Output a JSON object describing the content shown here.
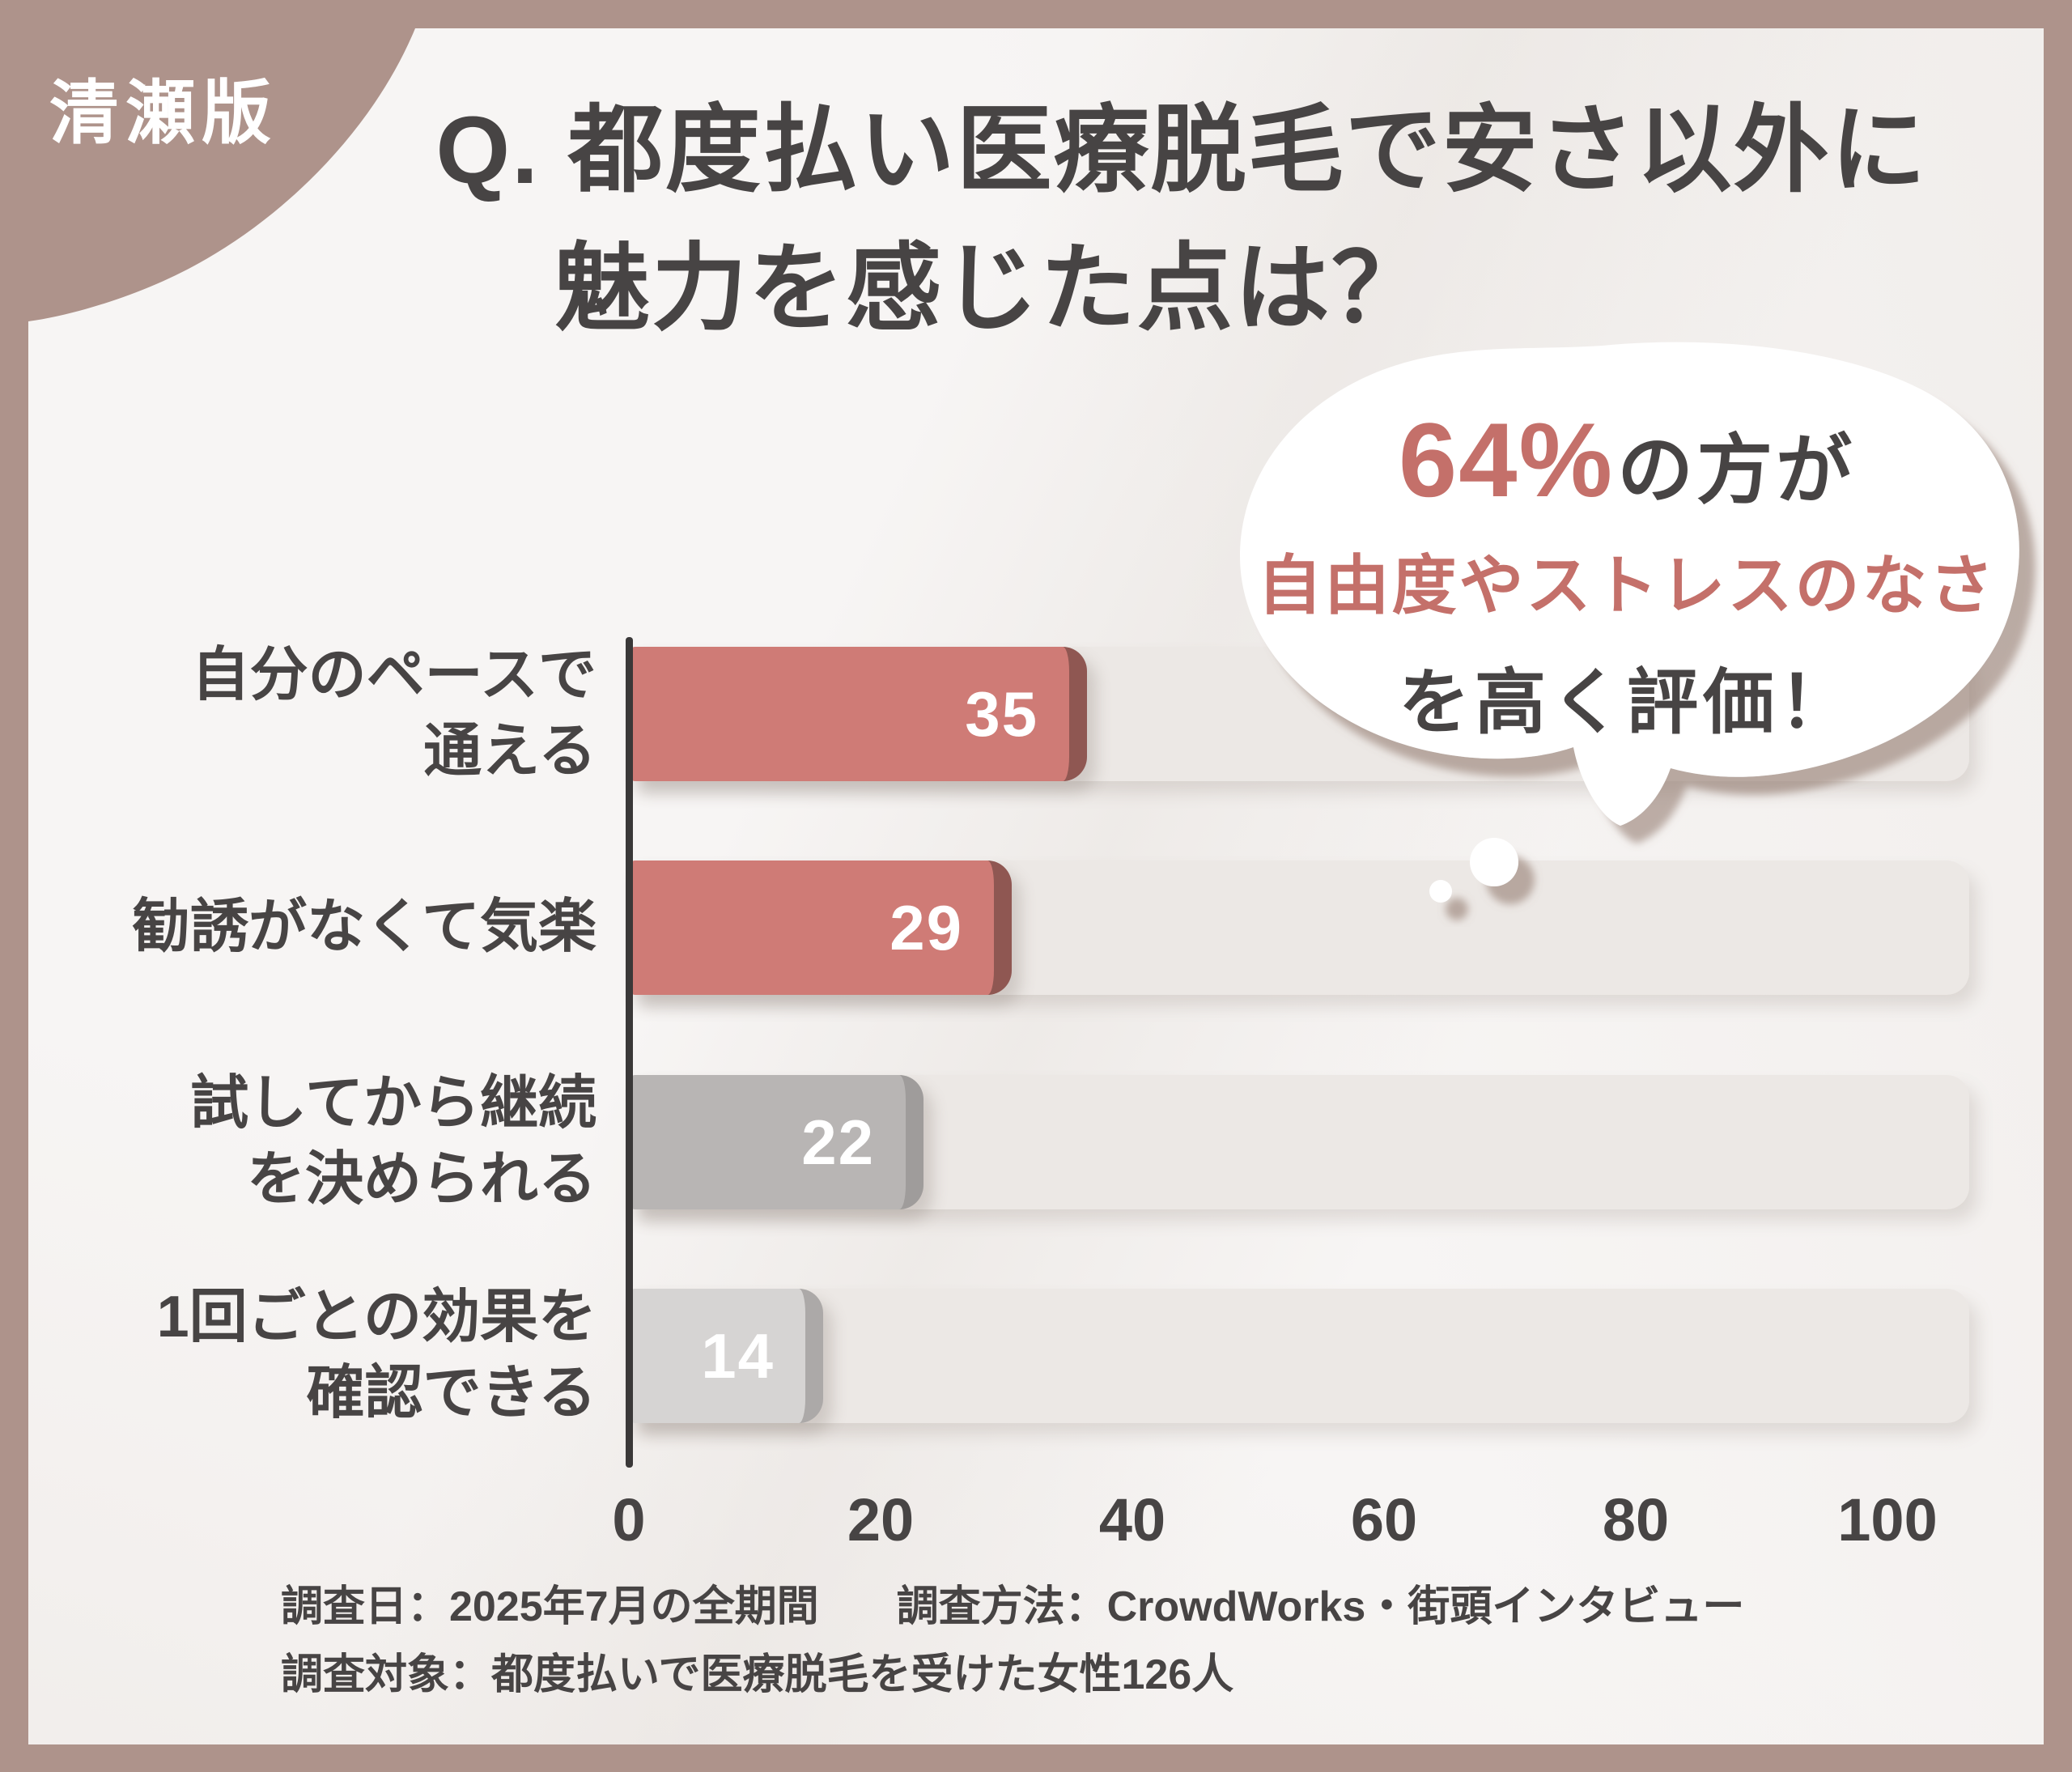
{
  "badge": {
    "label": "清瀬版"
  },
  "title": {
    "line1": "Q. 都度払い医療脱毛で安さ以外に",
    "line2": "魅力を感じた点は？"
  },
  "bubble": {
    "stat": "64%",
    "stat_suffix": "の方が",
    "highlight": "自由度やストレスのなさ",
    "conclusion": "を高く評価！"
  },
  "chart_data": {
    "type": "bar",
    "orientation": "horizontal",
    "title": "Q. 都度払い医療脱毛で安さ以外に魅力を感じた点は？",
    "categories": [
      "自分のペースで通える",
      "勧誘がなくて気楽",
      "試してから継続を決められる",
      "1回ごとの効果を確認できる"
    ],
    "category_lines": [
      [
        "自分のペースで",
        "通える"
      ],
      [
        "勧誘がなくて気楽"
      ],
      [
        "試してから継続",
        "を決められる"
      ],
      [
        "1回ごとの効果を",
        "確認できる"
      ]
    ],
    "values": [
      35,
      29,
      22,
      14
    ],
    "value_labels": [
      "35",
      "29",
      "22",
      "14"
    ],
    "bar_colors": [
      "#cf7b76",
      "#cf7b76",
      "#b8b5b4",
      "#d6d4d3"
    ],
    "bar_edge_colors": [
      "#8f5752",
      "#8f5752",
      "#9f9c9b",
      "#aca9a8"
    ],
    "track_color": "#ece8e5",
    "x_ticks": [
      0,
      20,
      40,
      60,
      80,
      100
    ],
    "xlim": [
      0,
      106.5
    ],
    "grid": false,
    "legend": false,
    "annotation": "64%の方が自由度やストレスのなさを高く評価！"
  },
  "footer": {
    "survey_date": "調査日：2025年7月の全期間",
    "survey_method": "調査方法：CrowdWorks・街頭インタビュー",
    "survey_target": "調査対象：都度払いで医療脱毛を受けた女性126人"
  },
  "colors": {
    "frame_brown": "#ae938b",
    "content_bg": "#f7f5f4",
    "accent_red": "#c4706a",
    "text_dark": "#474444",
    "axis": "#3a3838",
    "value_text": "#ffffff",
    "bubble_shadow": "#8d7267"
  }
}
